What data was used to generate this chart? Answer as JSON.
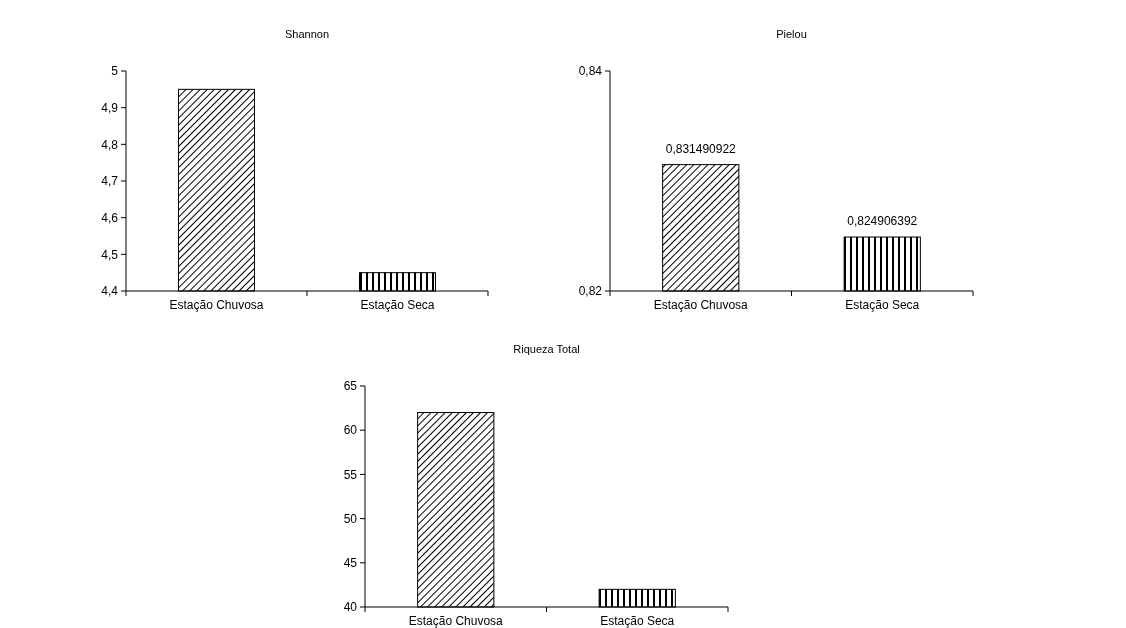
{
  "chart_data": [
    {
      "type": "bar",
      "title": "Shannon",
      "categories": [
        "Estação Chuvosa",
        "Estação Seca"
      ],
      "values": [
        4.95,
        4.45
      ],
      "colors": [
        "#000000",
        "#000000"
      ],
      "ylim": [
        4.4,
        5
      ],
      "yticks": [
        {
          "value": 4.4,
          "label": "4,4"
        },
        {
          "value": 4.5,
          "label": "4,5"
        },
        {
          "value": 4.6,
          "label": "4,6"
        },
        {
          "value": 4.7,
          "label": "4,7"
        },
        {
          "value": 4.8,
          "label": "4,8"
        },
        {
          "value": 4.9,
          "label": "4,9"
        },
        5
      ],
      "grid": false
    },
    {
      "type": "bar",
      "title": "Pielou",
      "categories": [
        "Estação Chuvosa",
        "Estação Seca"
      ],
      "values": [
        0.831490922,
        0.824906392
      ],
      "value_labels": [
        "0,831490922",
        "0,824906392"
      ],
      "colors": [
        "#000000",
        "#000000"
      ],
      "ylim": [
        0.82,
        0.84
      ],
      "yticks": [
        {
          "value": 0.82,
          "label": "0,82"
        },
        {
          "value": 0.84,
          "label": "0,84"
        }
      ],
      "grid": false
    },
    {
      "type": "bar",
      "title": "Riqueza Total",
      "categories": [
        "Estação Chuvosa",
        "Estação Seca"
      ],
      "values": [
        62,
        42
      ],
      "colors": [
        "#000000",
        "#000000"
      ],
      "ylim": [
        40,
        65
      ],
      "yticks": [
        40,
        45,
        50,
        55,
        60,
        65
      ],
      "grid": false
    }
  ]
}
